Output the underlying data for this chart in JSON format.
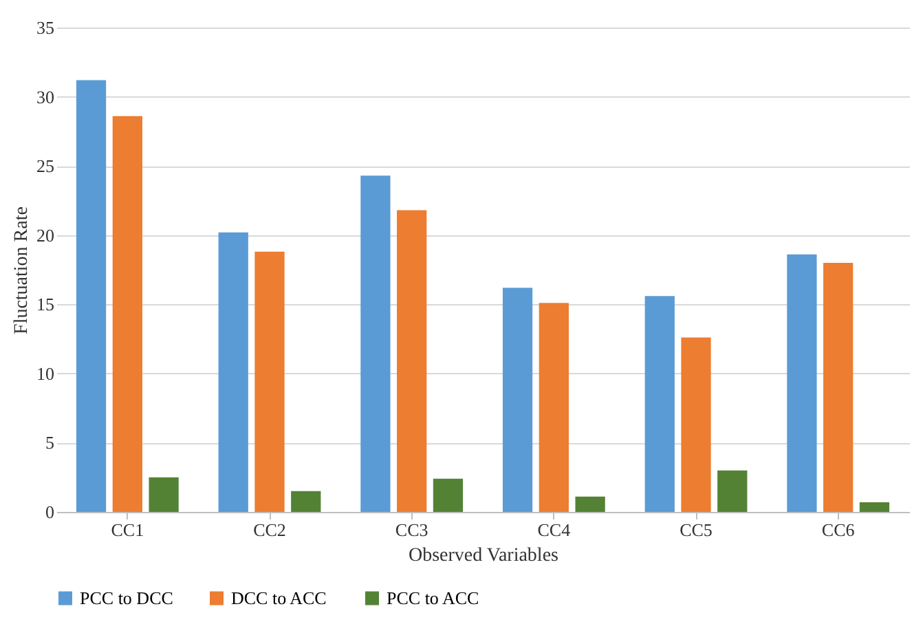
{
  "chart_data": {
    "type": "bar",
    "xlabel": "Observed Variables",
    "ylabel": "Fluctuation  Rate",
    "categories": [
      "CC1",
      "CC2",
      "CC3",
      "CC4",
      "CC5",
      "CC6"
    ],
    "series": [
      {
        "name": "PCC to DCC",
        "color": "#5b9bd5",
        "values": [
          31.2,
          20.2,
          24.3,
          16.2,
          15.6,
          18.6
        ]
      },
      {
        "name": "DCC to ACC",
        "color": "#ed7d31",
        "values": [
          28.6,
          18.8,
          21.8,
          15.1,
          12.6,
          18.0
        ]
      },
      {
        "name": "PCC to ACC",
        "color": "#548235",
        "values": [
          2.5,
          1.5,
          2.4,
          1.1,
          3.0,
          0.7
        ]
      }
    ],
    "ylim": [
      0,
      35
    ],
    "yticks": [
      0,
      5,
      10,
      15,
      20,
      25,
      30,
      35
    ],
    "grid": "y",
    "legend": "bottom"
  }
}
